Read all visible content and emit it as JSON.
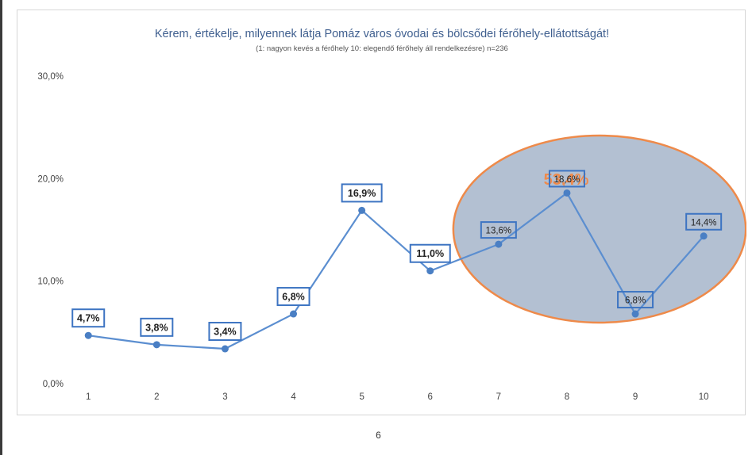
{
  "chart_data": {
    "type": "line",
    "title": "Kérem, értékelje, milyennek látja Pomáz város óvodai és bölcsődei férőhely-ellátottságát!",
    "subtitle": "(1: nagyon kevés a férőhely 10: elegendő férőhely áll rendelkezésre) n=236",
    "categories": [
      "1",
      "2",
      "3",
      "4",
      "5",
      "6",
      "7",
      "8",
      "9",
      "10"
    ],
    "series": [
      {
        "values": [
          4.7,
          3.8,
          3.4,
          6.8,
          16.9,
          11.0,
          13.6,
          18.6,
          6.8,
          14.4
        ],
        "labels": [
          "4,7%",
          "3,8%",
          "3,4%",
          "6,8%",
          "16,9%",
          "11,0%",
          "13,6%",
          "18,6%",
          "6,8%",
          "14,4%"
        ]
      }
    ],
    "ylim": [
      0,
      30
    ],
    "yticks": [
      0,
      10,
      20,
      30
    ],
    "ytick_labels": [
      "0,0%",
      "10,0%",
      "20,0%",
      "30,0%"
    ],
    "grid": false,
    "highlight": {
      "categories": [
        "7",
        "8",
        "9",
        "10"
      ],
      "label": "53,4%",
      "fill": "#b3c0d2",
      "stroke": "#ee8a4a"
    },
    "colors": {
      "line": "#5b8ed0",
      "marker": "#4a7fc4",
      "label_border": "#3d74c2",
      "callout": "#f08a4b"
    }
  },
  "page_number": "6"
}
